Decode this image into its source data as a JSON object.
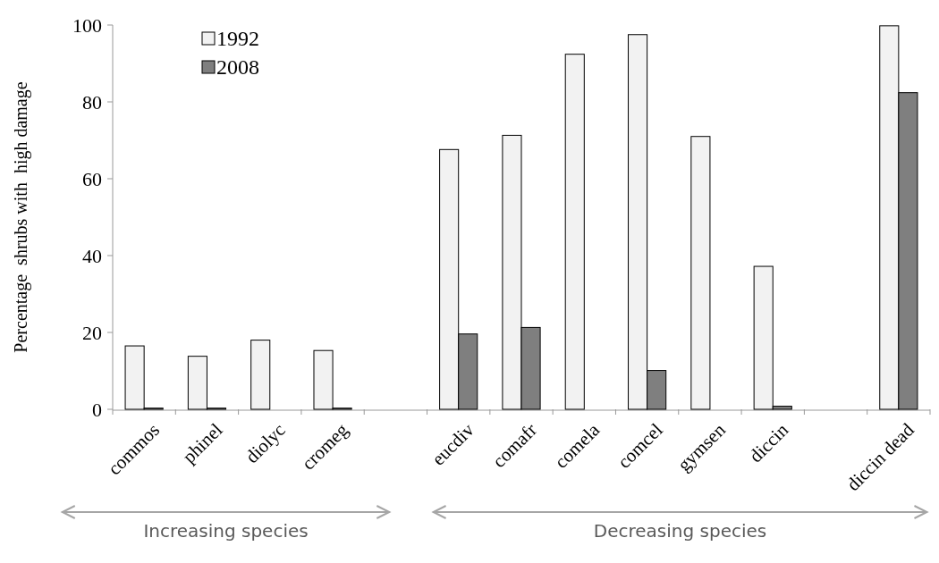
{
  "chart_data": {
    "type": "bar",
    "ylabel": "Percentage  shrubs with  high damage",
    "categories": [
      "commos",
      "phinel",
      "diolyc",
      "cromeg",
      null,
      "eucdiv",
      "comafr",
      "comela",
      "comcel",
      "gymsen",
      "diccin",
      null,
      "diccin dead"
    ],
    "series": [
      {
        "name": "1992",
        "color": "#f2f2f2",
        "values": [
          16.5,
          13.8,
          18.0,
          15.3,
          null,
          67.6,
          71.3,
          92.4,
          97.5,
          71.0,
          37.2,
          null,
          99.8
        ]
      },
      {
        "name": "2008",
        "color": "#7f7f7f",
        "values": [
          0.3,
          0.3,
          0,
          0.3,
          null,
          19.6,
          21.3,
          0,
          10.1,
          0,
          0.8,
          null,
          82.4
        ]
      }
    ],
    "ylim": [
      0,
      100
    ],
    "yticks": [
      0,
      20,
      40,
      60,
      80,
      100
    ],
    "legend": "top left",
    "annotations": [
      "Increasing species",
      "Decreasing species"
    ]
  }
}
